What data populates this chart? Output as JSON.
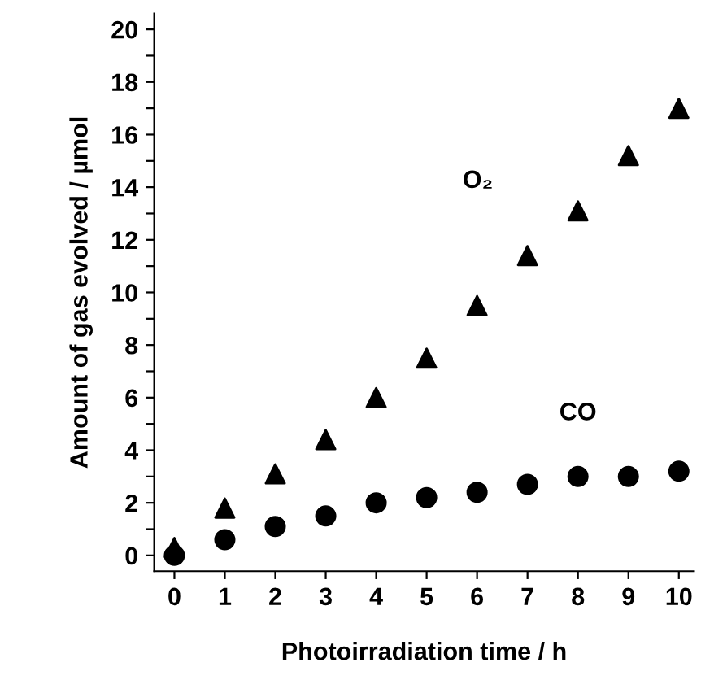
{
  "chart_data": {
    "type": "scatter",
    "xlabel": "Photoirradiation time / h",
    "ylabel": "Amount of gas evolved / µmol",
    "x": [
      0,
      1,
      2,
      3,
      4,
      5,
      6,
      7,
      8,
      9,
      10
    ],
    "series": [
      {
        "name": "O₂",
        "color": "#000000",
        "marker": "triangle",
        "values": [
          0.3,
          1.8,
          3.1,
          4.4,
          6.0,
          7.5,
          9.5,
          11.4,
          13.1,
          15.2,
          17.0
        ]
      },
      {
        "name": "CO",
        "color": "#000000",
        "marker": "circle",
        "values": [
          0.0,
          0.6,
          1.1,
          1.5,
          2.0,
          2.2,
          2.4,
          2.7,
          3.0,
          3.0,
          3.2
        ]
      }
    ],
    "xlim": [
      -0.4,
      10.3
    ],
    "ylim": [
      -0.6,
      20.6
    ],
    "xticks": [
      0,
      1,
      2,
      3,
      4,
      5,
      6,
      7,
      8,
      9,
      10
    ],
    "yticks": [
      0,
      {
        "value": 1,
        "label": null
      },
      2,
      {
        "value": 3,
        "label": null
      },
      4,
      {
        "value": 5,
        "label": null
      },
      6,
      {
        "value": 7,
        "label": null
      },
      8,
      {
        "value": 9,
        "label": null
      },
      10,
      {
        "value": 11,
        "label": null
      },
      12,
      {
        "value": 13,
        "label": null
      },
      14,
      {
        "value": 15,
        "label": null
      },
      16,
      {
        "value": 17,
        "label": null
      },
      18,
      {
        "value": 19,
        "label": null
      },
      20
    ],
    "grid": false,
    "legend": false
  }
}
